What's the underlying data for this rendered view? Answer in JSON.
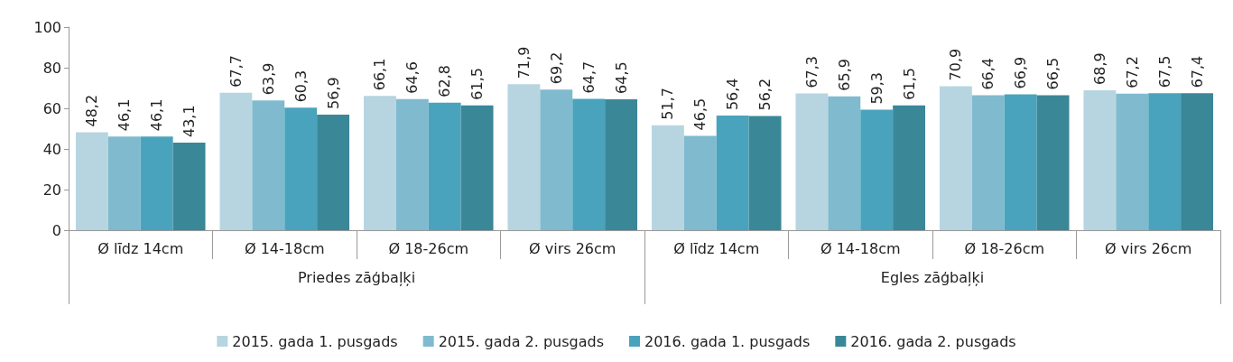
{
  "chart_data": {
    "type": "bar",
    "categories": [
      "Ø līdz 14cm",
      "Ø 14-18cm",
      "Ø 18-26cm",
      "Ø virs 26cm",
      "Ø līdz 14cm",
      "Ø 14-18cm",
      "Ø 18-26cm",
      "Ø virs 26cm"
    ],
    "annotations": [
      "Priedes zāģbaļķi",
      "Egles zāģbaļķi"
    ],
    "series": [
      {
        "name": "2015. gada 1. pusgads",
        "color": "#b7d5e0",
        "values": [
          48.2,
          67.7,
          66.1,
          71.9,
          51.7,
          67.3,
          70.9,
          68.9
        ],
        "value_labels": [
          "48,2",
          "67,7",
          "66,1",
          "71,9",
          "51,7",
          "67,3",
          "70,9",
          "68,9"
        ]
      },
      {
        "name": "2015. gada 2. pusgads",
        "color": "#7fbacf",
        "values": [
          46.1,
          63.9,
          64.6,
          69.2,
          46.5,
          65.9,
          66.4,
          67.2
        ],
        "value_labels": [
          "46,1",
          "63,9",
          "64,6",
          "69,2",
          "46,5",
          "65,9",
          "66,4",
          "67,2"
        ]
      },
      {
        "name": "2016. gada 1. pusgads",
        "color": "#4aa3bc",
        "values": [
          46.1,
          60.3,
          62.8,
          64.7,
          56.4,
          59.3,
          66.9,
          67.5
        ],
        "value_labels": [
          "46,1",
          "60,3",
          "62,8",
          "64,7",
          "56,4",
          "59,3",
          "66,9",
          "67,5"
        ]
      },
      {
        "name": "2016. gada 2. pusgads",
        "color": "#3a8798",
        "values": [
          43.1,
          56.9,
          61.5,
          64.5,
          56.2,
          61.5,
          66.5,
          67.4
        ],
        "value_labels": [
          "43,1",
          "56,9",
          "61,5",
          "64,5",
          "56,2",
          "61,5",
          "66,5",
          "67,4"
        ]
      }
    ],
    "ylim": [
      0,
      100
    ],
    "yticks": [
      0,
      20,
      40,
      60,
      80,
      100
    ],
    "grid": false,
    "legend": "bottom"
  }
}
